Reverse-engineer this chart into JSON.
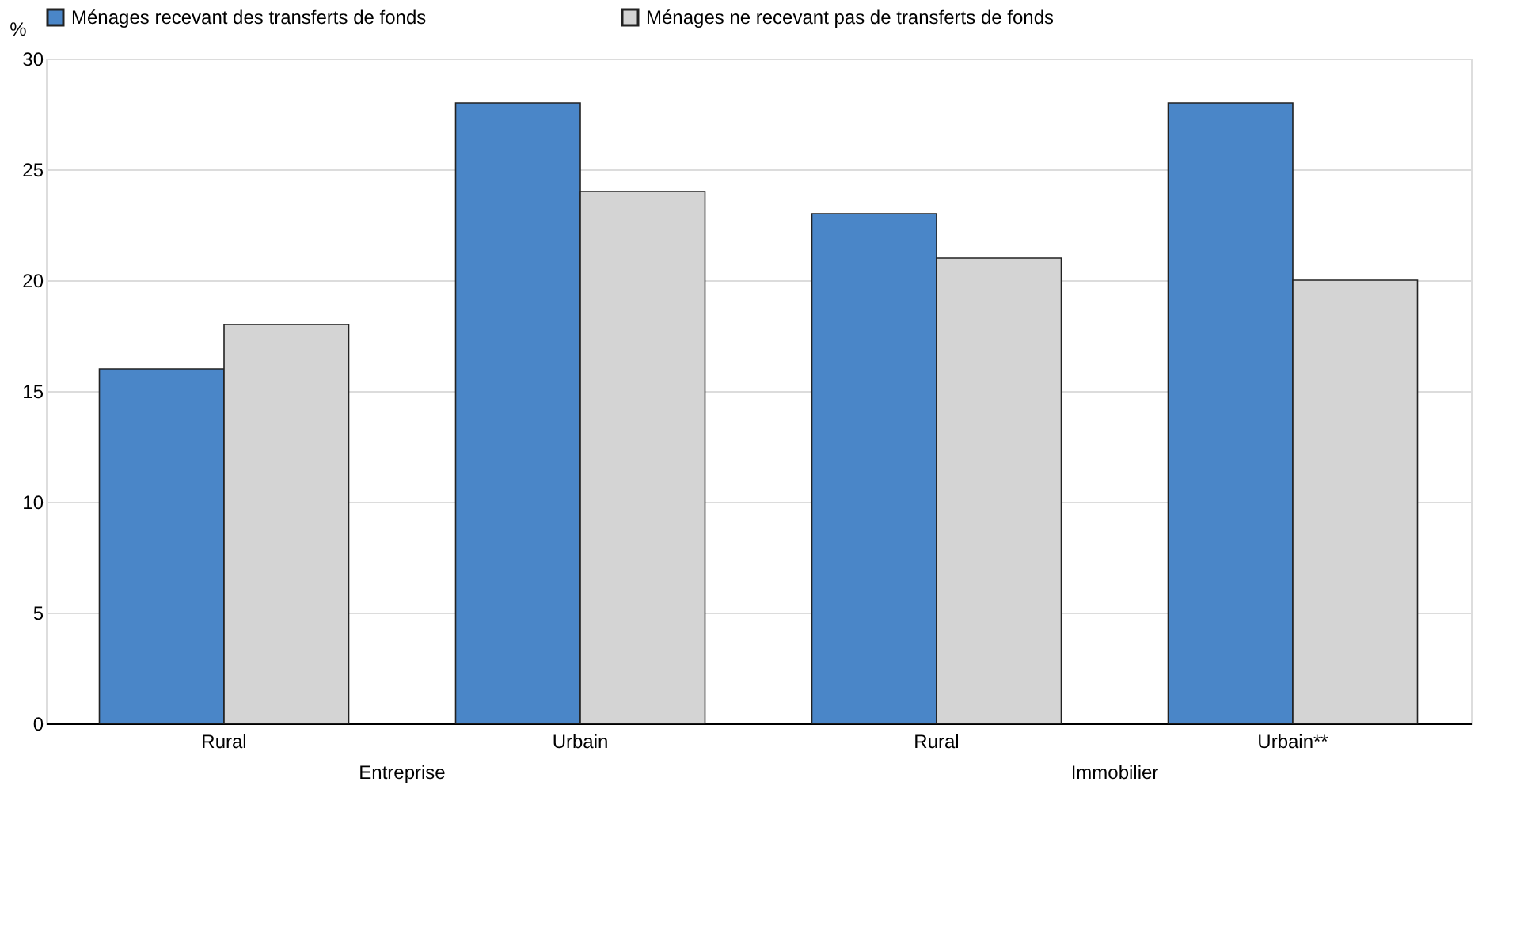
{
  "chart_data": {
    "type": "bar",
    "ylabel": "%",
    "categories": [
      "Rural",
      "Urbain",
      "Rural",
      "Urbain**"
    ],
    "series": [
      {
        "name": "Ménages recevant des transferts de fonds",
        "color": "#4a86c8",
        "values": [
          16,
          28,
          23,
          28
        ]
      },
      {
        "name": "Ménages ne recevant pas de transferts de fonds",
        "color": "#d4d4d4",
        "values": [
          18,
          24,
          21,
          20
        ]
      }
    ],
    "annotations": [
      "Entreprise",
      "Immobilier"
    ],
    "ylim": [
      0,
      30
    ],
    "yticks": [
      0,
      5,
      10,
      15,
      20,
      25,
      30
    ],
    "grid": "y",
    "legend": "top"
  }
}
